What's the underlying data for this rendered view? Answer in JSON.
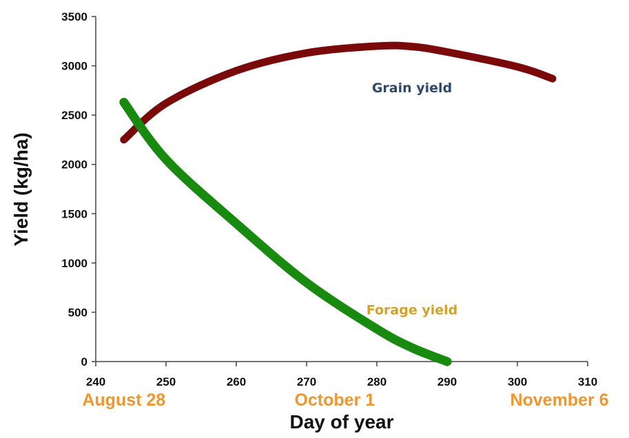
{
  "chart_data": {
    "type": "line",
    "xlabel": "Day of year",
    "ylabel": "Yield (kg/ha)",
    "xlim": [
      240,
      310
    ],
    "ylim": [
      0,
      3500
    ],
    "xticks": [
      240,
      250,
      260,
      270,
      280,
      290,
      300,
      310
    ],
    "yticks": [
      0,
      500,
      1000,
      1500,
      2000,
      2500,
      3000,
      3500
    ],
    "grid": false,
    "date_labels": [
      {
        "text": "August 28",
        "x": 244
      },
      {
        "text": "October 1",
        "x": 274
      },
      {
        "text": "November 6",
        "x": 310
      }
    ],
    "series": [
      {
        "name": "Grain yield",
        "color": "#7a0a0a",
        "label_color": "#2e4a6b",
        "x": [
          244,
          250,
          260,
          270,
          280,
          285,
          290,
          300,
          305
        ],
        "y": [
          2250,
          2620,
          2950,
          3130,
          3200,
          3195,
          3140,
          2990,
          2870
        ],
        "label_at": [
          285,
          2730
        ]
      },
      {
        "name": "Forage yield",
        "color": "#188a10",
        "label_color": "#d4a12a",
        "x": [
          244,
          250,
          260,
          270,
          280,
          285,
          290
        ],
        "y": [
          2630,
          2050,
          1400,
          800,
          330,
          140,
          0
        ],
        "label_at": [
          285,
          480
        ]
      }
    ]
  }
}
